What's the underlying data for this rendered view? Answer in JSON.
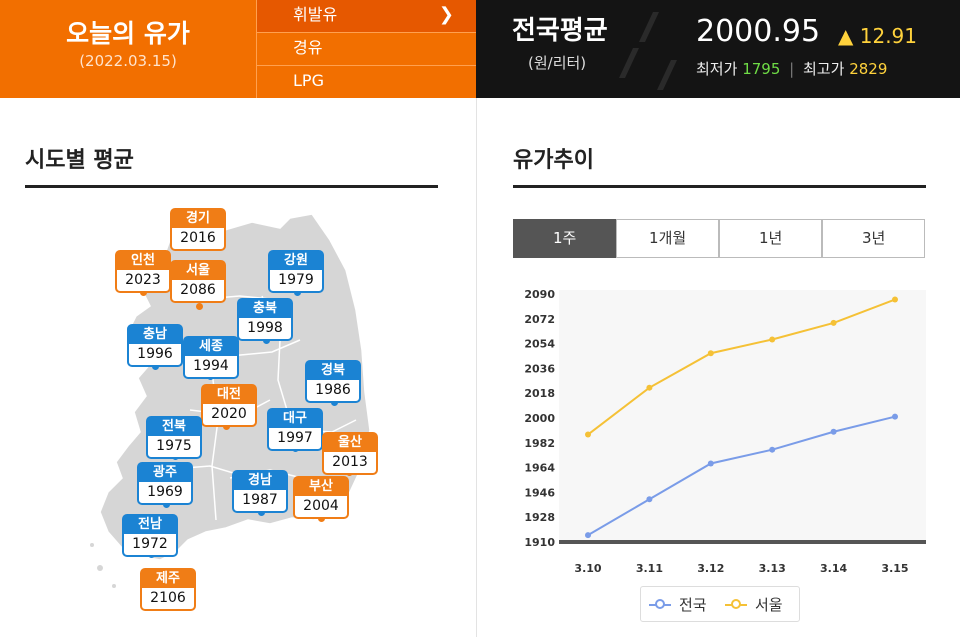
{
  "header": {
    "title": "오늘의 유가",
    "date": "(2022.03.15)",
    "menu": [
      "휘발유",
      "경유",
      "LPG"
    ],
    "national": {
      "title": "전국평균",
      "unit": "(원/리터)",
      "price": "2000.95",
      "change": "▲ 12.91",
      "min_label": "최저가",
      "min_value": "1795",
      "max_label": "최고가",
      "max_value": "2829"
    }
  },
  "regional": {
    "title": "시도별 평균",
    "regions": [
      {
        "name": "경기",
        "value": "2016",
        "color": "orange"
      },
      {
        "name": "인천",
        "value": "2023",
        "color": "orange"
      },
      {
        "name": "서울",
        "value": "2086",
        "color": "orange"
      },
      {
        "name": "강원",
        "value": "1979",
        "color": "blue"
      },
      {
        "name": "충북",
        "value": "1998",
        "color": "blue"
      },
      {
        "name": "충남",
        "value": "1996",
        "color": "blue"
      },
      {
        "name": "세종",
        "value": "1994",
        "color": "blue"
      },
      {
        "name": "경북",
        "value": "1986",
        "color": "blue"
      },
      {
        "name": "대전",
        "value": "2020",
        "color": "orange"
      },
      {
        "name": "전북",
        "value": "1975",
        "color": "blue"
      },
      {
        "name": "대구",
        "value": "1997",
        "color": "blue"
      },
      {
        "name": "울산",
        "value": "2013",
        "color": "orange"
      },
      {
        "name": "광주",
        "value": "1969",
        "color": "blue"
      },
      {
        "name": "경남",
        "value": "1987",
        "color": "blue"
      },
      {
        "name": "부산",
        "value": "2004",
        "color": "orange"
      },
      {
        "name": "전남",
        "value": "1972",
        "color": "blue"
      },
      {
        "name": "제주",
        "value": "2106",
        "color": "orange"
      }
    ]
  },
  "trend": {
    "title": "유가추이",
    "tabs": [
      "1주",
      "1개월",
      "1년",
      "3년"
    ],
    "selected_tab": "1주"
  },
  "chart_data": {
    "type": "line",
    "x": [
      "3.10",
      "3.11",
      "3.12",
      "3.13",
      "3.14",
      "3.15"
    ],
    "series": [
      {
        "name": "전국",
        "color": "#7a9ce8",
        "values": [
          1915,
          1941,
          1967,
          1977,
          1990,
          2001
        ]
      },
      {
        "name": "서울",
        "color": "#f5c136",
        "values": [
          1988,
          2022,
          2047,
          2057,
          2069,
          2086
        ]
      }
    ],
    "yticks": [
      "1910",
      "1928",
      "1946",
      "1964",
      "1982",
      "2000",
      "2018",
      "2036",
      "2054",
      "2072",
      "2090"
    ],
    "ylim": [
      1910,
      2090
    ],
    "grid": false,
    "legend": "bottom"
  }
}
